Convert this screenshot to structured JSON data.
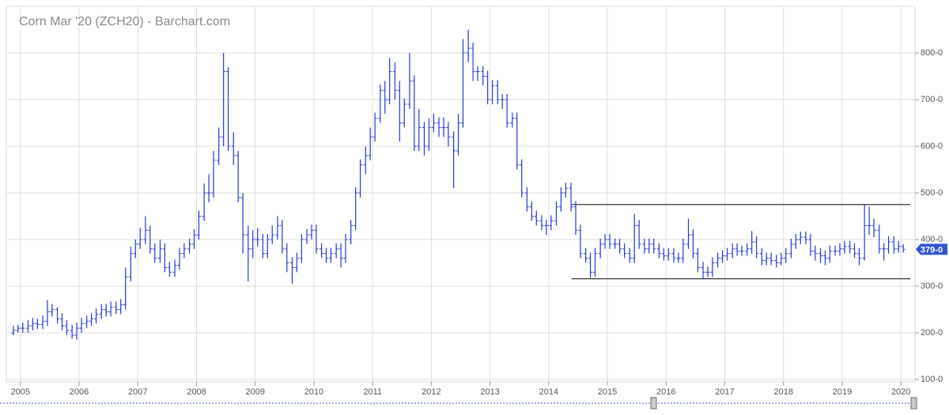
{
  "chart_data": {
    "type": "ohlc",
    "title": "Corn Mar '20 (ZCH20) - Barchart.com",
    "color": "#2438d8",
    "grid": true,
    "xlim": [
      2004.76,
      2020.24
    ],
    "ylim": [
      95,
      900
    ],
    "xticks": [
      2005,
      2006,
      2007,
      2008,
      2009,
      2010,
      2011,
      2012,
      2013,
      2014,
      2015,
      2016,
      2017,
      2018,
      2019,
      2020
    ],
    "yticks": [
      {
        "value": 100,
        "label": "100-0"
      },
      {
        "value": 200,
        "label": "200-0"
      },
      {
        "value": 300,
        "label": "300-0"
      },
      {
        "value": 400,
        "label": "400-0"
      },
      {
        "value": 500,
        "label": "500-0"
      },
      {
        "value": 600,
        "label": "600-0"
      },
      {
        "value": 700,
        "label": "700-0"
      },
      {
        "value": 800,
        "label": "800-0"
      }
    ],
    "last_price": {
      "value": 379,
      "label": "379-0"
    },
    "lines": [
      {
        "x": [
          2014.39,
          2020.16
        ],
        "y": 475
      },
      {
        "x": [
          2014.39,
          2020.16
        ],
        "y": 316
      }
    ],
    "x": [
      2004.88,
      2004.96,
      2005.04,
      2005.13,
      2005.21,
      2005.29,
      2005.38,
      2005.46,
      2005.54,
      2005.63,
      2005.71,
      2005.79,
      2005.88,
      2005.96,
      2006.04,
      2006.13,
      2006.21,
      2006.29,
      2006.38,
      2006.46,
      2006.54,
      2006.63,
      2006.71,
      2006.79,
      2006.88,
      2006.96,
      2007.04,
      2007.13,
      2007.21,
      2007.29,
      2007.38,
      2007.46,
      2007.54,
      2007.63,
      2007.71,
      2007.79,
      2007.88,
      2007.96,
      2008.04,
      2008.13,
      2008.21,
      2008.29,
      2008.38,
      2008.46,
      2008.54,
      2008.63,
      2008.71,
      2008.79,
      2008.88,
      2008.96,
      2009.04,
      2009.13,
      2009.21,
      2009.29,
      2009.38,
      2009.46,
      2009.54,
      2009.63,
      2009.71,
      2009.79,
      2009.88,
      2009.96,
      2010.04,
      2010.13,
      2010.21,
      2010.29,
      2010.38,
      2010.46,
      2010.54,
      2010.63,
      2010.71,
      2010.79,
      2010.88,
      2010.96,
      2011.04,
      2011.13,
      2011.21,
      2011.29,
      2011.38,
      2011.46,
      2011.54,
      2011.63,
      2011.71,
      2011.79,
      2011.88,
      2011.96,
      2012.04,
      2012.13,
      2012.21,
      2012.29,
      2012.38,
      2012.46,
      2012.54,
      2012.63,
      2012.71,
      2012.79,
      2012.88,
      2012.96,
      2013.04,
      2013.13,
      2013.21,
      2013.29,
      2013.38,
      2013.46,
      2013.54,
      2013.63,
      2013.71,
      2013.79,
      2013.88,
      2013.96,
      2014.04,
      2014.13,
      2014.21,
      2014.29,
      2014.38,
      2014.46,
      2014.54,
      2014.63,
      2014.71,
      2014.79,
      2014.88,
      2014.96,
      2015.04,
      2015.13,
      2015.21,
      2015.29,
      2015.38,
      2015.46,
      2015.54,
      2015.63,
      2015.71,
      2015.79,
      2015.88,
      2015.96,
      2016.04,
      2016.13,
      2016.21,
      2016.29,
      2016.38,
      2016.46,
      2016.54,
      2016.63,
      2016.71,
      2016.79,
      2016.88,
      2016.96,
      2017.04,
      2017.13,
      2017.21,
      2017.29,
      2017.38,
      2017.46,
      2017.54,
      2017.63,
      2017.71,
      2017.79,
      2017.88,
      2017.96,
      2018.04,
      2018.13,
      2018.21,
      2018.29,
      2018.38,
      2018.46,
      2018.54,
      2018.63,
      2018.71,
      2018.79,
      2018.88,
      2018.96,
      2019.04,
      2019.13,
      2019.21,
      2019.29,
      2019.38,
      2019.46,
      2019.54,
      2019.63,
      2019.71,
      2019.79,
      2019.88,
      2019.96,
      2020.04
    ],
    "open": [
      200,
      205,
      210,
      210,
      215,
      220,
      218,
      225,
      245,
      250,
      230,
      215,
      205,
      195,
      210,
      220,
      225,
      230,
      240,
      250,
      245,
      255,
      250,
      260,
      320,
      370,
      390,
      400,
      420,
      380,
      360,
      380,
      340,
      330,
      345,
      370,
      380,
      390,
      410,
      450,
      500,
      500,
      570,
      620,
      760,
      600,
      580,
      490,
      410,
      380,
      400,
      400,
      370,
      400,
      410,
      430,
      380,
      350,
      340,
      360,
      400,
      410,
      420,
      380,
      370,
      360,
      370,
      380,
      360,
      400,
      430,
      500,
      560,
      580,
      620,
      660,
      720,
      700,
      760,
      720,
      650,
      690,
      740,
      600,
      640,
      600,
      640,
      650,
      640,
      640,
      620,
      590,
      650,
      800,
      810,
      760,
      760,
      750,
      700,
      730,
      700,
      700,
      650,
      660,
      560,
      500,
      470,
      450,
      440,
      430,
      430,
      440,
      470,
      500,
      510,
      470,
      420,
      370,
      360,
      330,
      370,
      390,
      400,
      390,
      390,
      380,
      370,
      360,
      430,
      390,
      380,
      390,
      380,
      370,
      365,
      370,
      360,
      360,
      390,
      410,
      370,
      340,
      330,
      330,
      350,
      360,
      365,
      370,
      380,
      375,
      375,
      380,
      395,
      370,
      355,
      360,
      355,
      350,
      360,
      370,
      390,
      400,
      405,
      400,
      375,
      370,
      365,
      360,
      375,
      375,
      380,
      385,
      380,
      370,
      360,
      430,
      430,
      420,
      380,
      380,
      395,
      380,
      385
    ],
    "high": [
      215,
      217,
      222,
      227,
      232,
      230,
      237,
      270,
      262,
      255,
      242,
      227,
      217,
      222,
      232,
      237,
      242,
      252,
      262,
      262,
      267,
      267,
      272,
      340,
      385,
      400,
      425,
      450,
      430,
      392,
      400,
      392,
      352,
      357,
      382,
      392,
      402,
      422,
      462,
      520,
      540,
      590,
      640,
      800,
      770,
      630,
      590,
      500,
      430,
      420,
      425,
      412,
      412,
      430,
      450,
      442,
      392,
      362,
      372,
      412,
      422,
      432,
      432,
      392,
      382,
      382,
      392,
      392,
      412,
      442,
      512,
      572,
      600,
      640,
      672,
      732,
      740,
      790,
      780,
      740,
      702,
      800,
      752,
      680,
      652,
      660,
      670,
      662,
      662,
      652,
      632,
      670,
      830,
      850,
      822,
      772,
      772,
      762,
      742,
      742,
      712,
      712,
      672,
      672,
      572,
      512,
      482,
      462,
      452,
      442,
      452,
      482,
      512,
      522,
      522,
      482,
      432,
      382,
      372,
      382,
      402,
      412,
      412,
      402,
      402,
      392,
      382,
      455,
      442,
      402,
      402,
      402,
      392,
      382,
      382,
      382,
      372,
      402,
      445,
      422,
      382,
      352,
      342,
      362,
      372,
      377,
      382,
      392,
      392,
      387,
      392,
      418,
      407,
      382,
      372,
      372,
      367,
      372,
      382,
      402,
      412,
      417,
      417,
      412,
      387,
      382,
      377,
      387,
      387,
      392,
      397,
      397,
      392,
      382,
      475,
      470,
      445,
      432,
      392,
      407,
      407,
      397,
      390
    ],
    "low": [
      195,
      200,
      200,
      200,
      205,
      208,
      208,
      215,
      235,
      220,
      205,
      195,
      188,
      185,
      200,
      210,
      215,
      220,
      230,
      235,
      235,
      240,
      240,
      250,
      310,
      360,
      380,
      390,
      370,
      350,
      350,
      330,
      320,
      320,
      335,
      360,
      370,
      380,
      400,
      440,
      480,
      490,
      560,
      600,
      590,
      560,
      480,
      370,
      310,
      360,
      385,
      360,
      360,
      390,
      400,
      370,
      330,
      305,
      330,
      350,
      390,
      400,
      370,
      360,
      350,
      350,
      360,
      340,
      350,
      390,
      420,
      490,
      540,
      570,
      610,
      650,
      670,
      690,
      700,
      610,
      640,
      680,
      590,
      590,
      580,
      590,
      630,
      620,
      620,
      600,
      510,
      580,
      640,
      780,
      740,
      740,
      730,
      690,
      690,
      690,
      680,
      640,
      640,
      550,
      490,
      460,
      440,
      430,
      420,
      410,
      420,
      430,
      460,
      490,
      460,
      410,
      360,
      350,
      318,
      320,
      360,
      380,
      380,
      380,
      370,
      360,
      350,
      350,
      380,
      370,
      370,
      370,
      360,
      355,
      355,
      350,
      350,
      350,
      380,
      360,
      330,
      315,
      320,
      320,
      340,
      350,
      355,
      360,
      365,
      365,
      365,
      370,
      360,
      345,
      345,
      345,
      340,
      345,
      350,
      360,
      380,
      390,
      390,
      365,
      355,
      350,
      345,
      350,
      365,
      365,
      370,
      370,
      360,
      345,
      355,
      410,
      405,
      370,
      355,
      370,
      370,
      372,
      372
    ],
    "close": [
      205,
      210,
      210,
      215,
      220,
      218,
      225,
      245,
      250,
      230,
      215,
      205,
      195,
      210,
      220,
      225,
      230,
      240,
      250,
      245,
      255,
      250,
      260,
      320,
      370,
      390,
      400,
      420,
      380,
      360,
      380,
      340,
      330,
      345,
      370,
      380,
      390,
      410,
      450,
      500,
      500,
      570,
      620,
      760,
      600,
      580,
      490,
      410,
      380,
      400,
      400,
      370,
      400,
      410,
      430,
      380,
      350,
      340,
      360,
      400,
      410,
      420,
      380,
      370,
      360,
      370,
      380,
      360,
      400,
      430,
      500,
      560,
      580,
      620,
      660,
      720,
      700,
      760,
      720,
      650,
      690,
      740,
      600,
      640,
      600,
      640,
      650,
      640,
      640,
      620,
      590,
      650,
      800,
      810,
      760,
      760,
      750,
      700,
      730,
      700,
      700,
      650,
      660,
      560,
      500,
      470,
      450,
      440,
      430,
      430,
      440,
      470,
      500,
      510,
      470,
      420,
      370,
      360,
      330,
      370,
      390,
      400,
      390,
      390,
      380,
      370,
      360,
      430,
      390,
      380,
      390,
      380,
      370,
      365,
      370,
      360,
      360,
      390,
      410,
      370,
      340,
      330,
      330,
      350,
      360,
      365,
      370,
      380,
      375,
      375,
      380,
      395,
      370,
      355,
      360,
      355,
      350,
      360,
      370,
      390,
      400,
      405,
      400,
      375,
      370,
      365,
      360,
      375,
      375,
      380,
      385,
      380,
      370,
      360,
      430,
      430,
      420,
      380,
      380,
      395,
      380,
      385,
      379
    ]
  }
}
